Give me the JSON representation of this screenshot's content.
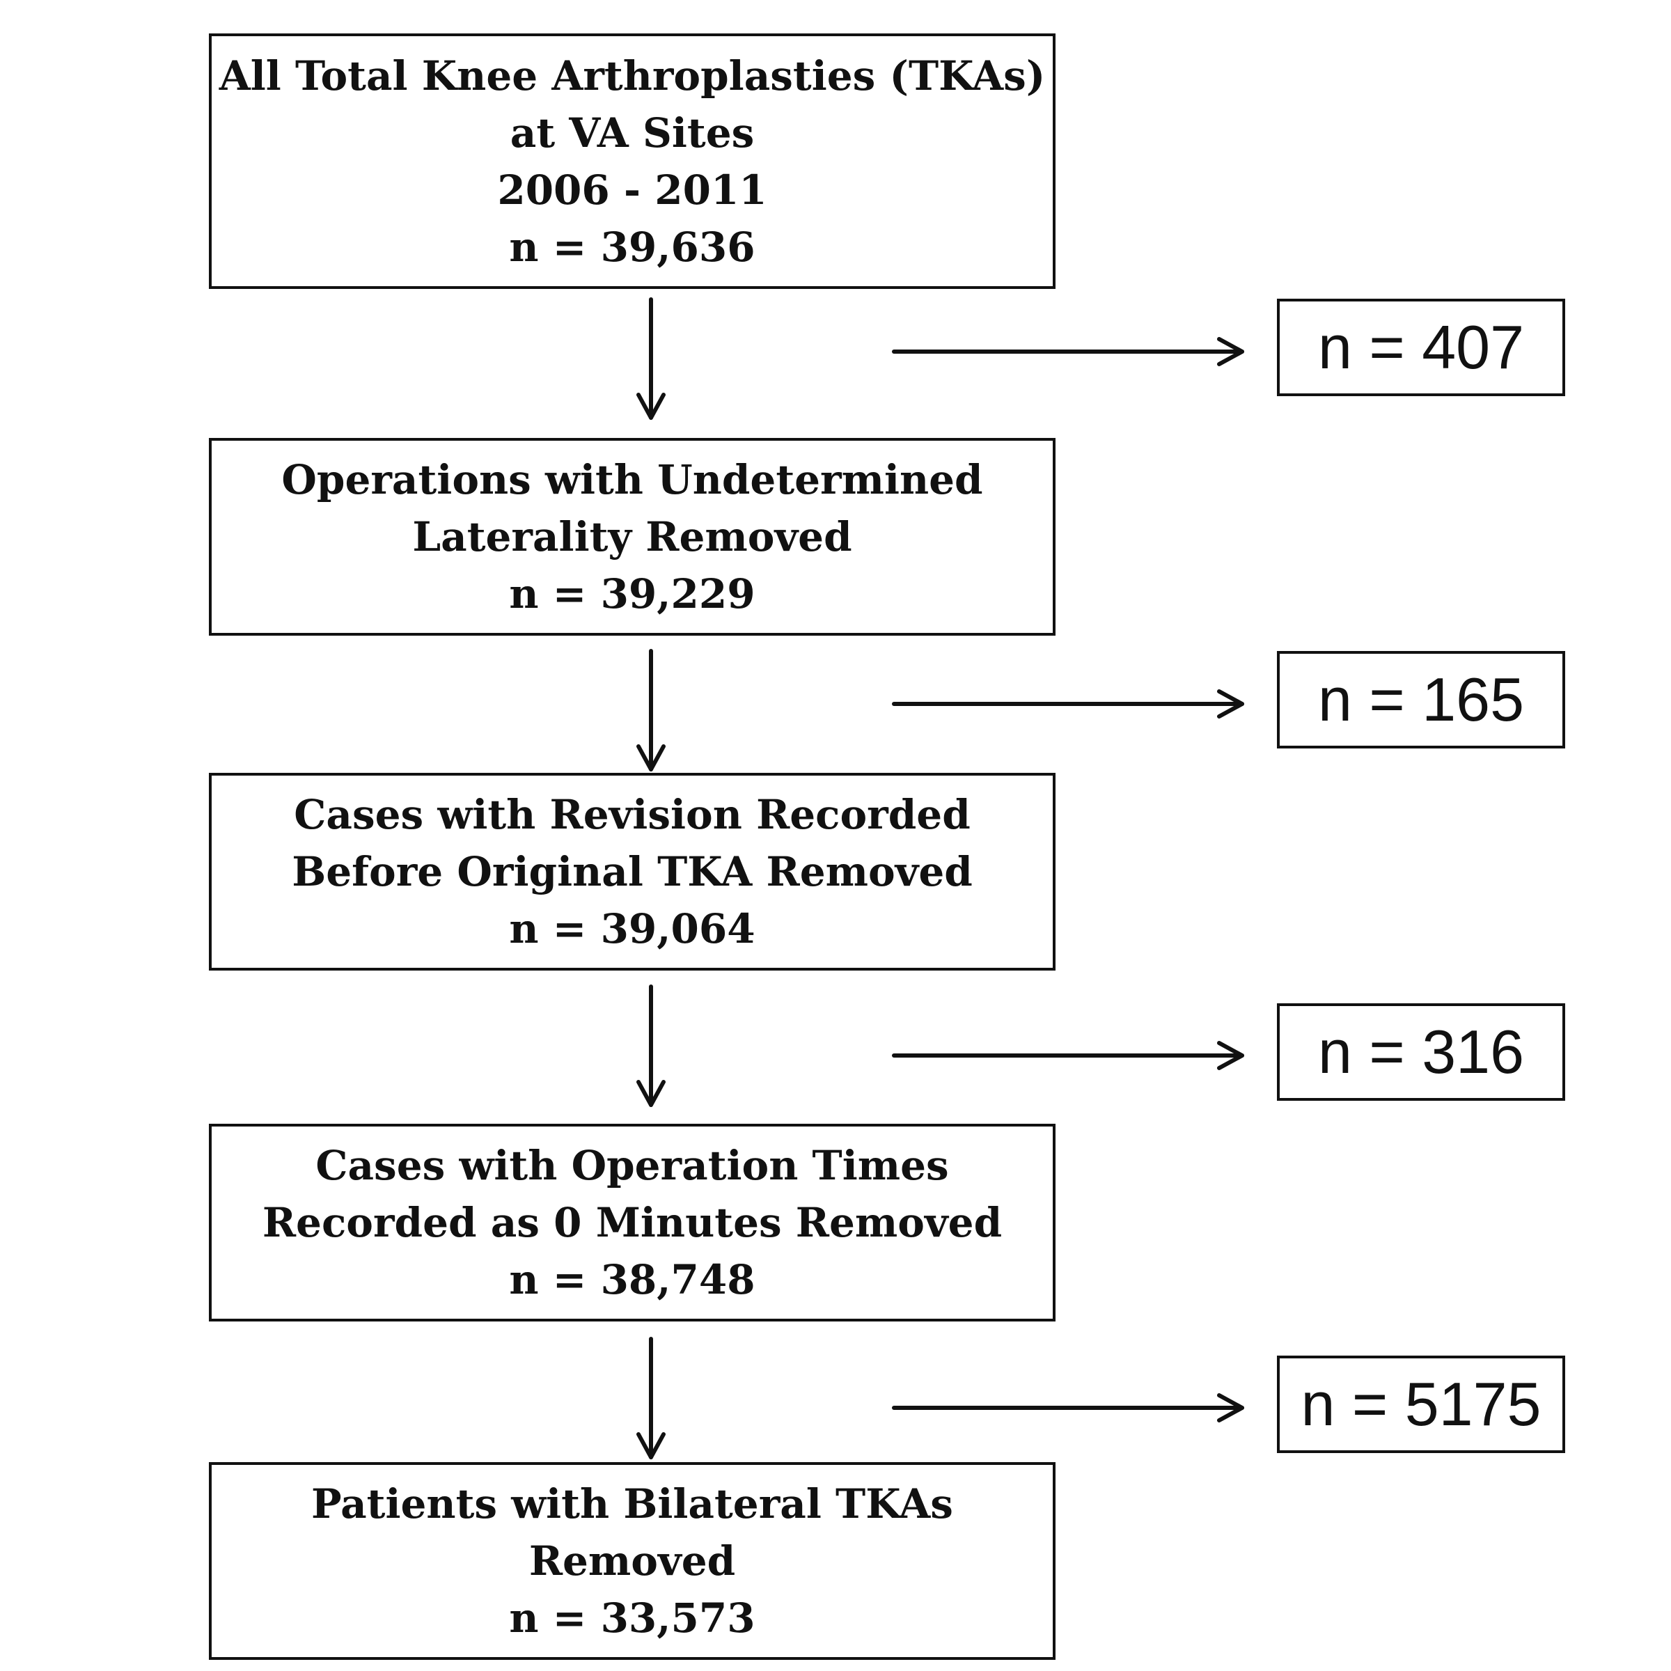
{
  "steps": [
    {
      "lines": [
        "All Total Knee Arthroplasties (TKAs)",
        "at VA Sites",
        "2006 - 2011"
      ],
      "count": "n = 39,636"
    },
    {
      "lines": [
        "Operations with Undetermined",
        "Laterality Removed"
      ],
      "count": "n = 39,229"
    },
    {
      "lines": [
        "Cases with Revision Recorded",
        "Before Original TKA Removed"
      ],
      "count": "n = 39,064"
    },
    {
      "lines": [
        "Cases with Operation Times",
        "Recorded as 0 Minutes Removed"
      ],
      "count": "n = 38,748"
    },
    {
      "lines": [
        "Patients with Bilateral TKAs",
        "Removed"
      ],
      "count": "n = 33,573"
    }
  ],
  "exclusions": [
    "n = 407",
    "n = 165",
    "n = 316",
    "n = 5175"
  ]
}
